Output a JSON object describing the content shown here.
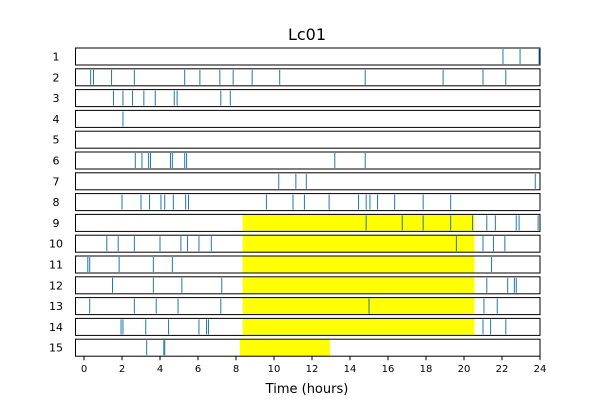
{
  "chart_data": {
    "type": "event-raster",
    "title": "Lc01",
    "xlabel": "Time (hours)",
    "ylabel": "",
    "xlim": [
      0,
      24
    ],
    "xticks": [
      0,
      2,
      4,
      6,
      8,
      10,
      12,
      14,
      16,
      18,
      20,
      22,
      24
    ],
    "rows": [
      {
        "label": "1",
        "events": [
          22.05,
          22.95,
          23.95
        ],
        "highlights": []
      },
      {
        "label": "2",
        "events": [
          0.35,
          0.5,
          1.45,
          2.65,
          5.3,
          6.1,
          7.15,
          7.85,
          8.85,
          10.3,
          14.8,
          18.9,
          21.0,
          22.2
        ],
        "highlights": []
      },
      {
        "label": "3",
        "events": [
          1.55,
          2.05,
          2.55,
          3.15,
          3.75,
          4.75,
          4.9,
          7.2,
          7.7
        ],
        "highlights": []
      },
      {
        "label": "4",
        "events": [
          2.05
        ],
        "highlights": []
      },
      {
        "label": "5",
        "events": [],
        "highlights": []
      },
      {
        "label": "6",
        "events": [
          2.7,
          3.05,
          3.4,
          3.5,
          4.55,
          4.65,
          5.3,
          5.4,
          13.2,
          14.8
        ],
        "highlights": []
      },
      {
        "label": "7",
        "events": [
          10.25,
          11.15,
          11.7,
          23.75
        ],
        "highlights": []
      },
      {
        "label": "8",
        "events": [
          2.0,
          3.0,
          3.45,
          4.05,
          4.25,
          4.7,
          5.35,
          5.5,
          9.6,
          11.0,
          11.6,
          12.9,
          14.45,
          14.85,
          15.05,
          15.45,
          16.35,
          17.85,
          19.3
        ],
        "highlights": []
      },
      {
        "label": "9",
        "events": [
          14.85,
          16.75,
          17.85,
          19.3,
          20.45,
          21.2,
          21.65,
          22.75,
          22.9,
          23.9
        ],
        "highlights": [
          [
            8.35,
            20.55
          ]
        ]
      },
      {
        "label": "10",
        "events": [
          1.2,
          1.8,
          2.65,
          4.0,
          5.1,
          5.45,
          6.05,
          6.7,
          19.6,
          21.0,
          21.55,
          22.15
        ],
        "highlights": [
          [
            8.35,
            20.55
          ]
        ]
      },
      {
        "label": "11",
        "events": [
          0.2,
          0.3,
          1.85,
          3.65,
          4.65,
          21.45
        ],
        "highlights": [
          [
            8.35,
            20.55
          ]
        ]
      },
      {
        "label": "12",
        "events": [
          1.5,
          3.65,
          5.15,
          7.25,
          21.2,
          22.3,
          22.65,
          22.75
        ],
        "highlights": [
          [
            8.35,
            20.55
          ]
        ]
      },
      {
        "label": "13",
        "events": [
          0.3,
          2.65,
          3.8,
          4.95,
          7.2,
          15.0,
          21.05,
          21.75
        ],
        "highlights": [
          [
            8.35,
            20.55
          ]
        ]
      },
      {
        "label": "14",
        "events": [
          1.95,
          2.05,
          3.25,
          4.45,
          6.05,
          6.45,
          6.55,
          21.0,
          21.4,
          22.2
        ],
        "highlights": [
          [
            8.35,
            20.55
          ]
        ]
      },
      {
        "label": "15",
        "events": [
          3.3,
          4.2,
          4.25
        ],
        "highlights": [
          [
            8.2,
            12.95
          ]
        ]
      }
    ],
    "colors": {
      "event": "#1f77b4",
      "highlight": "#ffff00",
      "frame": "#000000",
      "background": "#ffffff"
    }
  }
}
